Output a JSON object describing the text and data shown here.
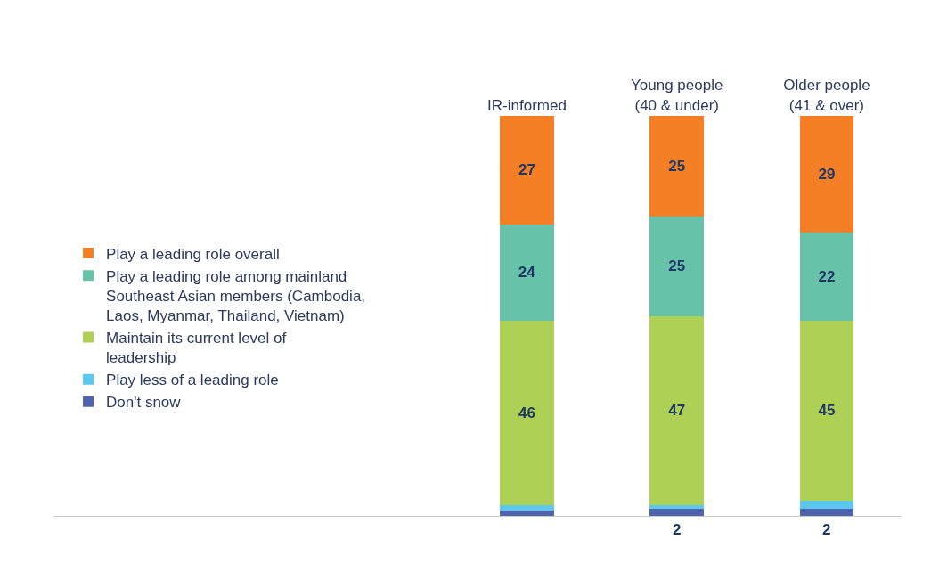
{
  "chart_data": {
    "type": "bar",
    "stacked": true,
    "categories": [
      "IR-informed",
      "Young people\n(40 & under)",
      "Older people\n(41 & over)"
    ],
    "legend": "left",
    "grid": false,
    "series": [
      {
        "name": "Don't snow",
        "color": "#4f63ae",
        "values": [
          1.5,
          2,
          2
        ],
        "value_labels": [
          null,
          "2",
          "2"
        ]
      },
      {
        "name": "Play less of a leading role",
        "color": "#5bc8f0",
        "values": [
          1.5,
          1,
          2
        ],
        "value_labels": [
          null,
          null,
          null
        ]
      },
      {
        "name": "Maintain its current level of leadership",
        "color": "#add055",
        "values": [
          46,
          47,
          45
        ],
        "value_labels": [
          "46",
          "47",
          "45"
        ]
      },
      {
        "name": "Play a leading role among mainland Southeast Asian members (Cambodia, Laos, Myanmar, Thailand, Vietnam)",
        "color": "#66c2a9",
        "values": [
          24,
          25,
          22
        ],
        "value_labels": [
          "24",
          "25",
          "22"
        ]
      },
      {
        "name": "Play a leading role overall",
        "color": "#f47f24",
        "values": [
          27,
          25,
          29
        ],
        "value_labels": [
          "27",
          "25",
          "29"
        ]
      }
    ]
  }
}
